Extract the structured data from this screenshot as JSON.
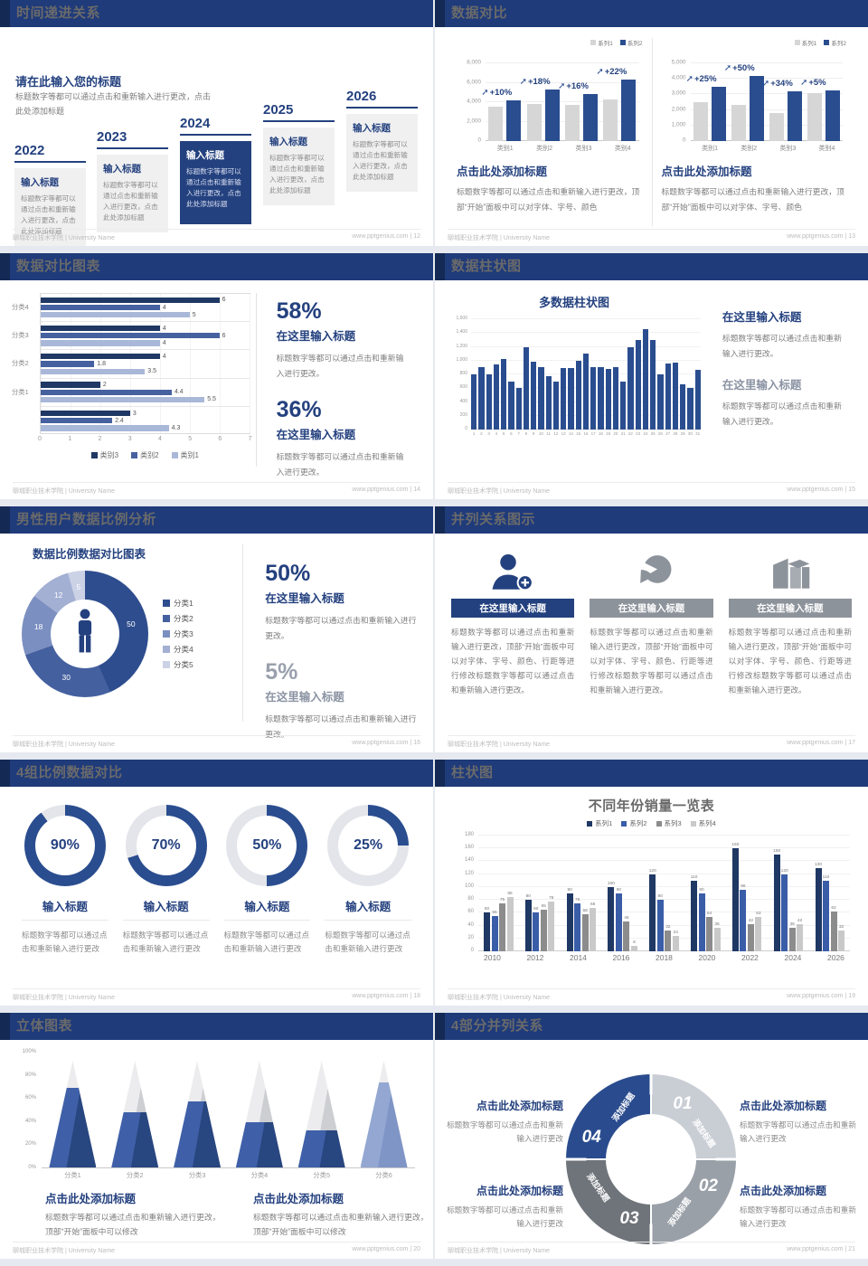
{
  "footer": {
    "org": "聊城职业技术学院 | University Name",
    "site": "www.pptgenius.com"
  },
  "icons": {
    "growth_arrow": "➚"
  },
  "colors": {
    "navy": "#24417f",
    "header": "#1f3b7a",
    "bar_blue": "#2a4d8f",
    "bar_gray": "#d6d6d6"
  },
  "slide12": {
    "title": "时间递进关系",
    "page": "12",
    "heading": "请在此输入您的标题",
    "intro": "标题数字等都可以通过点击和重新输入进行更改，点击此处添加标题",
    "item_title": "输入标题",
    "item_body": "标题数字等都可以通过点击和重新输入进行更改，点击此处添加标题",
    "years": [
      "2022",
      "2023",
      "2024",
      "2025",
      "2026"
    ]
  },
  "slide13": {
    "title": "数据对比",
    "page": "13",
    "heading": "点击此处添加标题",
    "body": "标题数字等都可以通过点击和重新输入进行更改，顶部“开始”面板中可以对字体、字号、颜色"
  },
  "slide14": {
    "title": "数据对比图表",
    "page": "14",
    "stats": [
      {
        "pct": "58%",
        "heading": "在这里输入标题",
        "body": "标题数字等都可以通过点击和重新输入进行更改。"
      },
      {
        "pct": "36%",
        "heading": "在这里输入标题",
        "body": "标题数字等都可以通过点击和重新输入进行更改。"
      }
    ]
  },
  "slide15": {
    "title": "数据柱状图",
    "page": "15",
    "blocks": [
      {
        "heading": "在这里输入标题",
        "body": "标题数字等都可以通过点击和重新输入进行更改。"
      },
      {
        "heading": "在这里输入标题",
        "body": "标题数字等都可以通过点击和重新输入进行更改。"
      }
    ]
  },
  "slide16": {
    "title": "男性用户数据比例分析",
    "page": "16",
    "stats": [
      {
        "pct": "50%",
        "heading": "在这里输入标题",
        "body": "标题数字等都可以通过点击和重新输入进行更改。"
      },
      {
        "pct": "5%",
        "heading": "在这里输入标题",
        "body": "标题数字等都可以通过点击和重新输入进行更改。"
      }
    ]
  },
  "slide17": {
    "title": "并列关系图示",
    "page": "17",
    "item_title": "在这里输入标题",
    "item_body": "标题数字等都可以通过点击和重新输入进行更改，顶部“开始”面板中可以对字体、字号、颜色、行距等进行修改标题数字等都可以通过点击和重新输入进行更改。"
  },
  "slide18": {
    "title": "4组比例数据对比",
    "page": "18",
    "item_title": "输入标题",
    "item_body": "标题数字等都可以通过点击和重新输入进行更改"
  },
  "slide19": {
    "title": "柱状图",
    "page": "19"
  },
  "slide20": {
    "title": "立体图表",
    "page": "20",
    "heading": "点击此处添加标题",
    "body": "标题数字等都可以通过点击和重新输入进行更改，顶部“开始”面板中可以修改"
  },
  "slide21": {
    "title": "4部分并列关系",
    "page": "21",
    "heading": "点击此处添加标题",
    "body": "标题数字等都可以通过点击和重新输入进行更改"
  },
  "chart_data": [
    {
      "id": "compare-left",
      "type": "bar",
      "categories": [
        "类别1",
        "类别2",
        "类别3",
        "类别4"
      ],
      "series": [
        {
          "name": "系列1",
          "color": "#d6d6d6",
          "values": [
            3500,
            3800,
            3700,
            4300
          ]
        },
        {
          "name": "系列2",
          "color": "#2a4d8f",
          "values": [
            4200,
            5300,
            4800,
            6300
          ]
        }
      ],
      "growth_labels": [
        "+10%",
        "+18%",
        "+16%",
        "+22%"
      ],
      "ylim": [
        0,
        8000
      ],
      "ystep": 2000,
      "legend_position": "top-right",
      "grid": true
    },
    {
      "id": "compare-right",
      "type": "bar",
      "categories": [
        "类别1",
        "类别2",
        "类别3",
        "类别4"
      ],
      "series": [
        {
          "name": "系列1",
          "color": "#d6d6d6",
          "values": [
            2500,
            2350,
            1800,
            3100
          ]
        },
        {
          "name": "系列2",
          "color": "#2a4d8f",
          "values": [
            3500,
            4200,
            3200,
            3250
          ]
        }
      ],
      "growth_labels": [
        "+25%",
        "+50%",
        "+34%",
        "+5%"
      ],
      "ylim": [
        0,
        5000
      ],
      "ystep": 1000,
      "legend_position": "top-right",
      "grid": true
    },
    {
      "id": "hbar",
      "type": "bar",
      "orientation": "horizontal",
      "group_labels": [
        "分类4",
        "分类3",
        "分类2",
        "分类1",
        ""
      ],
      "series": [
        {
          "name": "类别3",
          "color": "#1f3864",
          "values": [
            6,
            4,
            4,
            2,
            3
          ]
        },
        {
          "name": "类别2",
          "color": "#46619f",
          "values": [
            4,
            6,
            1.8,
            4.4,
            2.4
          ]
        },
        {
          "name": "类别1",
          "color": "#a9b8d8",
          "values": [
            5,
            4,
            3.5,
            5.5,
            4.3
          ]
        }
      ],
      "xlim": [
        0,
        7
      ],
      "xticks": [
        0,
        1,
        2,
        3,
        4,
        5,
        6,
        7
      ],
      "legend_position": "bottom"
    },
    {
      "id": "multi-col",
      "type": "bar",
      "title": "多数据柱状图",
      "x": [
        1,
        2,
        3,
        4,
        5,
        6,
        7,
        8,
        9,
        10,
        11,
        12,
        13,
        14,
        15,
        16,
        17,
        18,
        19,
        20,
        21,
        22,
        23,
        24,
        25,
        26,
        27,
        28,
        29,
        30,
        31
      ],
      "values": [
        800,
        900,
        800,
        950,
        1020,
        700,
        600,
        1200,
        980,
        900,
        780,
        700,
        890,
        890,
        1000,
        1100,
        900,
        900,
        880,
        900,
        700,
        1200,
        1300,
        1450,
        1300,
        800,
        960,
        970,
        660,
        600,
        870
      ],
      "ylim": [
        0,
        1600
      ],
      "ystep": 200,
      "color": "#2a4d8f"
    },
    {
      "id": "donut",
      "type": "pie",
      "title": "数据比例数据对比图表",
      "labels": [
        "分类1",
        "分类2",
        "分类3",
        "分类4",
        "分类5"
      ],
      "values": [
        50,
        30,
        18,
        12,
        5
      ],
      "colors": [
        "#2e4d8e",
        "#44609f",
        "#7b8fc0",
        "#a3b0d4",
        "#ccd2e6"
      ],
      "center_icon": "male-person",
      "legend_position": "right"
    },
    {
      "id": "rings",
      "type": "pie",
      "variant": "progress-rings",
      "values": [
        90,
        70,
        50,
        25
      ],
      "labels": [
        "90%",
        "70%",
        "50%",
        "25%"
      ],
      "color": "#2a4d8f",
      "track": "#e3e5ea"
    },
    {
      "id": "sales",
      "type": "bar",
      "title": "不同年份销量一览表",
      "categories": [
        "2010",
        "2012",
        "2014",
        "2016",
        "2018",
        "2020",
        "2022",
        "2024",
        "2026"
      ],
      "series": [
        {
          "name": "系列1",
          "color": "#1f3864",
          "values": [
            60,
            80,
            90,
            100,
            120,
            110,
            160,
            150,
            130
          ]
        },
        {
          "name": "系列2",
          "color": "#3a5da8",
          "values": [
            55,
            60,
            75,
            90,
            80,
            90,
            96,
            120,
            110
          ]
        },
        {
          "name": "系列3",
          "color": "#8c8c8c",
          "values": [
            75,
            65,
            58,
            46,
            32,
            54,
            42,
            36,
            62
          ]
        },
        {
          "name": "系列4",
          "color": "#c9c9c9",
          "values": [
            85,
            78,
            68,
            8,
            24,
            36,
            53,
            42,
            32
          ]
        }
      ],
      "ylim": [
        0,
        180
      ],
      "ystep": 20,
      "legend_position": "top",
      "grid": true
    },
    {
      "id": "cones",
      "type": "bar",
      "variant": "3d-cone",
      "categories": [
        "分类1",
        "分类2",
        "分类3",
        "分类4",
        "分类5",
        "分类6"
      ],
      "values_pct": [
        75,
        52,
        62,
        42,
        35,
        80
      ],
      "fills": [
        [
          "#3f60a8",
          "#28467f"
        ],
        [
          "#3f60a8",
          "#28467f"
        ],
        [
          "#3f60a8",
          "#28467f"
        ],
        [
          "#3f60a8",
          "#28467f"
        ],
        [
          "#3f60a8",
          "#28467f"
        ],
        [
          "#93a7d2",
          "#7f95c6"
        ]
      ],
      "yticks": [
        "0%",
        "20%",
        "40%",
        "60%",
        "80%",
        "100%"
      ]
    },
    {
      "id": "cycle",
      "type": "pie",
      "variant": "4-segment-ring",
      "segments": [
        {
          "num": "01",
          "label": "添加标题",
          "color": "#c9cdd4"
        },
        {
          "num": "02",
          "label": "添加标题",
          "color": "#9aa0a8"
        },
        {
          "num": "03",
          "label": "添加标题",
          "color": "#6f747a"
        },
        {
          "num": "04",
          "label": "添加标题",
          "color": "#2a4c8e"
        }
      ]
    }
  ]
}
